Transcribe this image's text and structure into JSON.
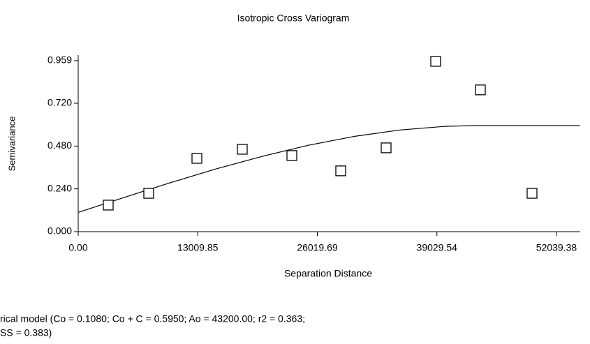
{
  "chart_data": {
    "type": "scatter",
    "title": "Isotropic Cross Variogram",
    "x_label": "Separation Distance",
    "y_label": "Semivariance",
    "xlim": [
      0,
      54600
    ],
    "ylim": [
      0,
      0.99
    ],
    "xticks": [
      {
        "value": 0,
        "label": "0.00"
      },
      13009.85,
      26019.69,
      39029.54,
      52039.38
    ],
    "yticks": [
      {
        "value": 0,
        "label": "0.000"
      },
      {
        "value": 0.24,
        "label": "0.240"
      },
      {
        "value": 0.48,
        "label": "0.480"
      },
      {
        "value": 0.72,
        "label": "0.720"
      },
      0.959
    ],
    "points": {
      "color": "#000000",
      "x": [
        3267,
        7673,
        12915,
        17853,
        23247,
        28564,
        33503,
        38896,
        43759,
        49380
      ],
      "values": [
        0.149,
        0.215,
        0.411,
        0.462,
        0.427,
        0.341,
        0.47,
        0.955,
        0.795,
        0.215
      ]
    },
    "model": {
      "color": "#000000",
      "x": [
        0,
        5000,
        10000,
        15000,
        20000,
        25000,
        30000,
        35000,
        40000,
        43200,
        54600
      ],
      "values": [
        0.108,
        0.192,
        0.274,
        0.352,
        0.422,
        0.484,
        0.534,
        0.57,
        0.591,
        0.595,
        0.595
      ]
    },
    "annotations": [
      "rical model (Co = 0.1080; Co + C = 0.5950; Ao = 43200.00; r2 = 0.363;",
      "SS = 0.383)"
    ]
  }
}
